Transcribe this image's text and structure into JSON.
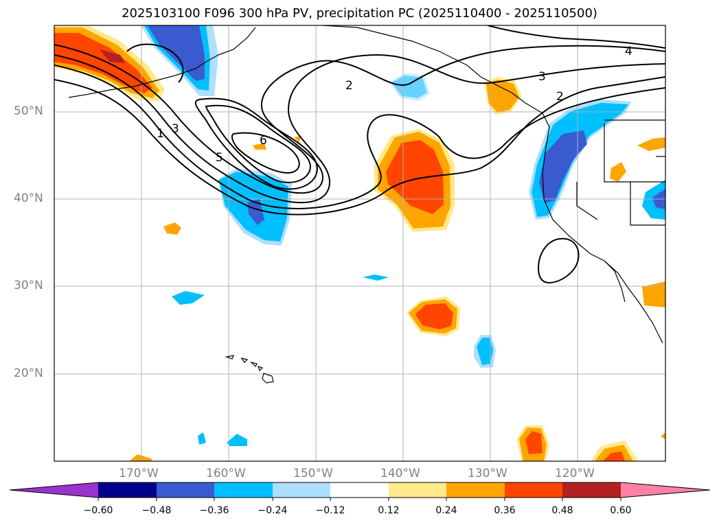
{
  "title": "2025103100 F096 300 hPa PV, precipitation PC (2025110400 - 2025110500)",
  "map": {
    "lon_range": [
      -180,
      -110
    ],
    "lat_range": [
      10,
      60
    ],
    "lon_ticks": [
      "170°W",
      "160°W",
      "150°W",
      "140°W",
      "130°W",
      "120°W"
    ],
    "lat_ticks": [
      "50°N",
      "40°N",
      "30°N",
      "20°N"
    ],
    "pv_contour_labels": [
      "1",
      "2",
      "2",
      "3",
      "3",
      "4",
      "5",
      "6"
    ]
  },
  "colorbar": {
    "levels": [
      "−0.60",
      "−0.48",
      "−0.36",
      "−0.24",
      "−0.12",
      "0.12",
      "0.24",
      "0.36",
      "0.48",
      "0.60"
    ],
    "colors": [
      "#9933cc",
      "#00008b",
      "#3a5bd0",
      "#00bfff",
      "#addfff",
      "#ffffff",
      "#ffe98a",
      "#ffa500",
      "#ff4500",
      "#b22222",
      "#ff82a6"
    ]
  },
  "shading_colors": {
    "light_blue": "#addfff",
    "cyan": "#00bfff",
    "mid_blue": "#3a5bd0",
    "light_orange": "#ffe98a",
    "orange": "#ffa500",
    "red_orange": "#ff4500",
    "dark_red": "#b22222"
  }
}
